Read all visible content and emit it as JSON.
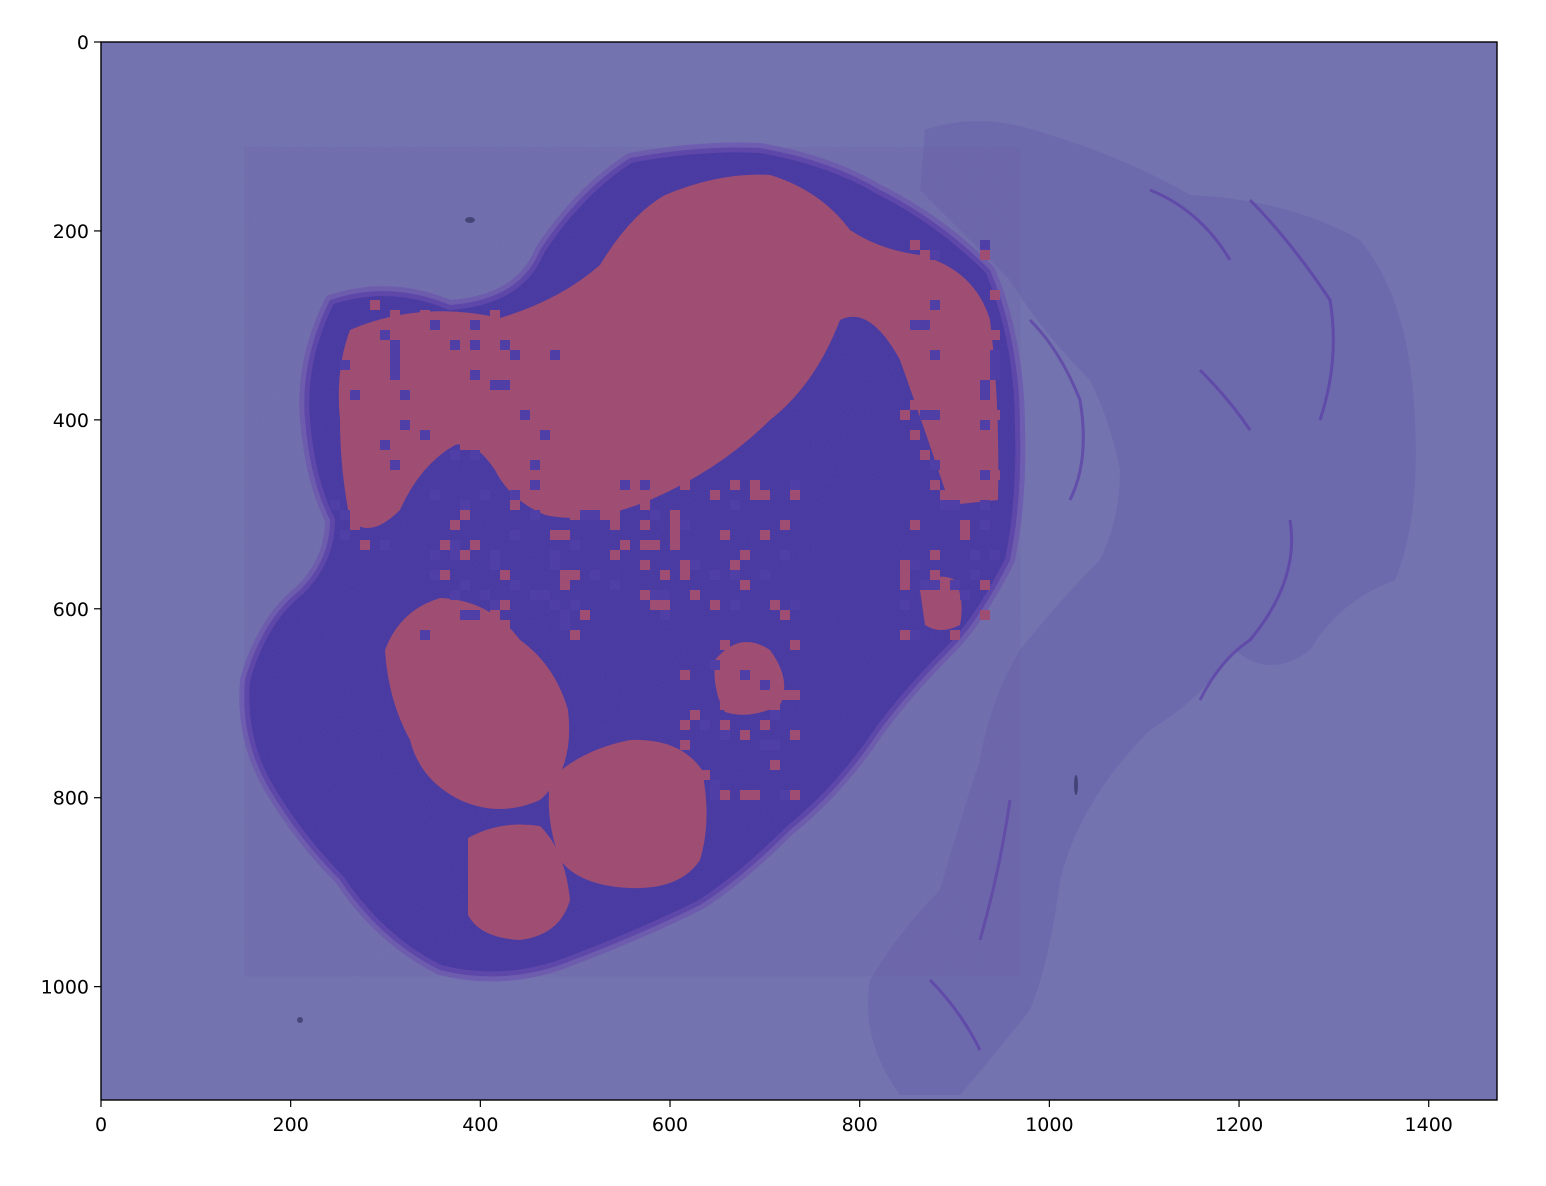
{
  "image": {
    "description_free": true,
    "width": 1472,
    "height": 1120,
    "background_color": "#7373b0",
    "frame_color": "#000000"
  },
  "overlay": {
    "low_class_color": "#4a3aa8",
    "high_class_color": "#a94c6a"
  },
  "axes": {
    "x": {
      "lim": [
        0,
        1472
      ],
      "ticks": [
        0,
        200,
        400,
        600,
        800,
        1000,
        1200,
        1400
      ],
      "tick_labels": [
        "0",
        "200",
        "400",
        "600",
        "800",
        "1000",
        "1200",
        "1400"
      ]
    },
    "y": {
      "lim": [
        1120,
        0
      ],
      "ticks": [
        0,
        200,
        400,
        600,
        800,
        1000
      ],
      "tick_labels": [
        "0",
        "200",
        "400",
        "600",
        "800",
        "1000"
      ]
    }
  }
}
